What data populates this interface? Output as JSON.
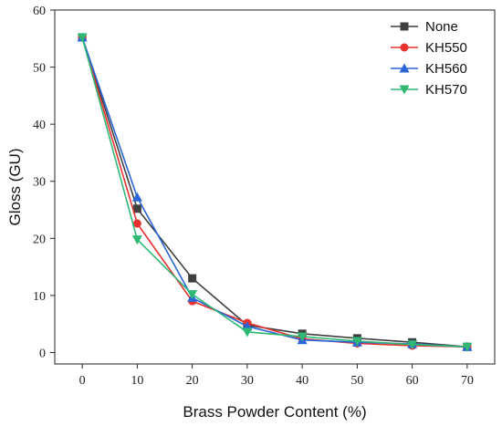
{
  "chart_data": {
    "type": "line",
    "xlabel": "Brass Powder Content (%)",
    "ylabel": "Gloss (GU)",
    "x": [
      0,
      10,
      20,
      30,
      40,
      50,
      60,
      70
    ],
    "xlim": [
      -5,
      75
    ],
    "ylim": [
      -2,
      60
    ],
    "xticks": [
      0,
      10,
      20,
      30,
      40,
      50,
      60,
      70
    ],
    "yticks": [
      0,
      10,
      20,
      30,
      40,
      50,
      60
    ],
    "grid": false,
    "legend_position": "top-right",
    "series": [
      {
        "name": "None",
        "color": "#3f3f3f",
        "marker": "square",
        "values": [
          55.2,
          25.2,
          13.0,
          4.8,
          3.3,
          2.5,
          1.8,
          1.0
        ]
      },
      {
        "name": "KH550",
        "color": "#e8302f",
        "marker": "circle",
        "values": [
          55.2,
          22.6,
          9.0,
          5.2,
          2.4,
          1.6,
          1.2,
          1.0
        ]
      },
      {
        "name": "KH560",
        "color": "#2a64d8",
        "marker": "triangle-up",
        "values": [
          55.2,
          27.2,
          9.6,
          4.6,
          2.2,
          1.8,
          1.5,
          1.0
        ]
      },
      {
        "name": "KH570",
        "color": "#2fb874",
        "marker": "triangle-down",
        "values": [
          55.2,
          19.8,
          10.2,
          3.6,
          2.8,
          2.0,
          1.4,
          1.0
        ]
      }
    ]
  }
}
